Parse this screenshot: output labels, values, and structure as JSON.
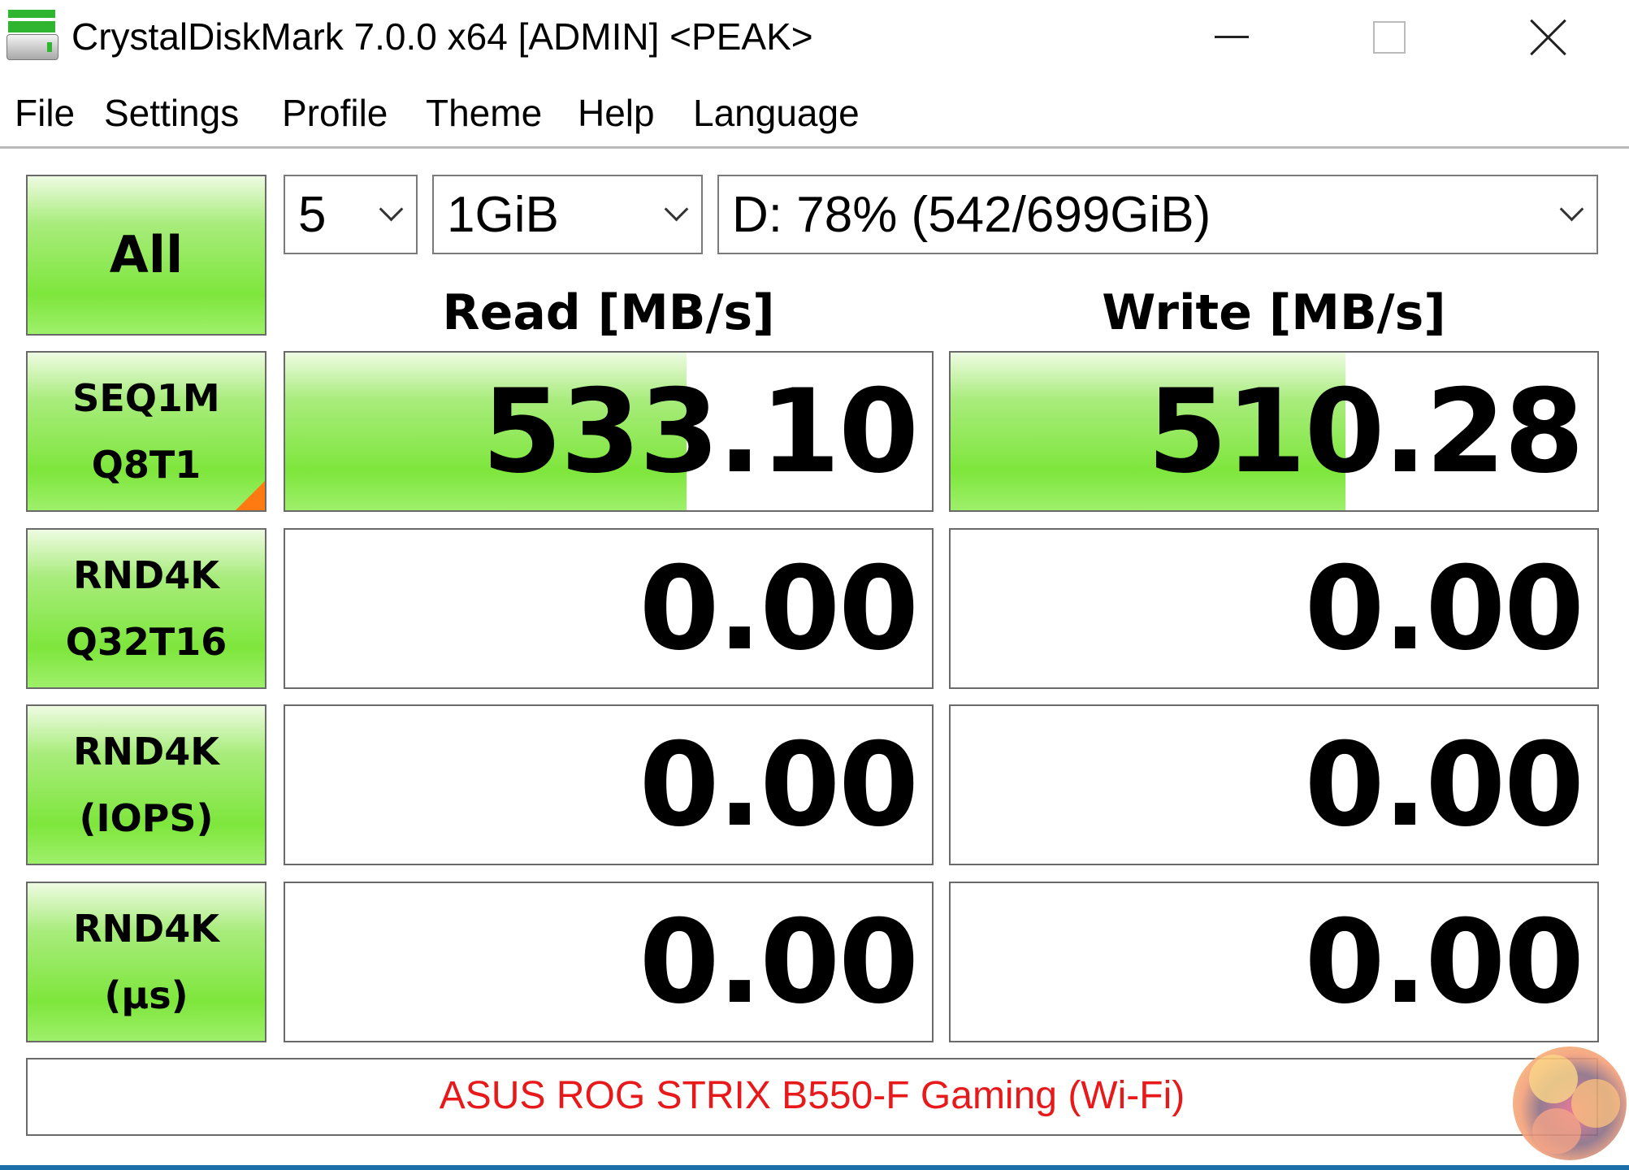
{
  "window": {
    "title": "CrystalDiskMark 7.0.0 x64 [ADMIN] <PEAK>",
    "icon": "disk-icon"
  },
  "menu": [
    "File",
    "Settings",
    "Profile",
    "Theme",
    "Help",
    "Language"
  ],
  "controls": {
    "all_label": "All",
    "count": "5",
    "size": "1GiB",
    "drive": "D: 78% (542/699GiB)"
  },
  "headers": {
    "read": "Read [MB/s]",
    "write": "Write [MB/s]"
  },
  "rows": [
    {
      "line1": "SEQ1M",
      "line2": "Q8T1",
      "read": "533.10",
      "write": "510.28",
      "read_fill": 0.62,
      "write_fill": 0.61
    },
    {
      "line1": "RND4K",
      "line2": "Q32T16",
      "read": "0.00",
      "write": "0.00",
      "read_fill": 0,
      "write_fill": 0
    },
    {
      "line1": "RND4K",
      "line2": "(IOPS)",
      "read": "0.00",
      "write": "0.00",
      "read_fill": 0,
      "write_fill": 0
    },
    {
      "line1": "RND4K",
      "line2": "(μs)",
      "read": "0.00",
      "write": "0.00",
      "read_fill": 0,
      "write_fill": 0
    }
  ],
  "comment": "ASUS ROG STRIX B550-F Gaming (Wi-Fi)",
  "colors": {
    "accent_green": "#7ee63c",
    "comment_text": "#e8191b",
    "window_border": "#1a6fa8"
  }
}
